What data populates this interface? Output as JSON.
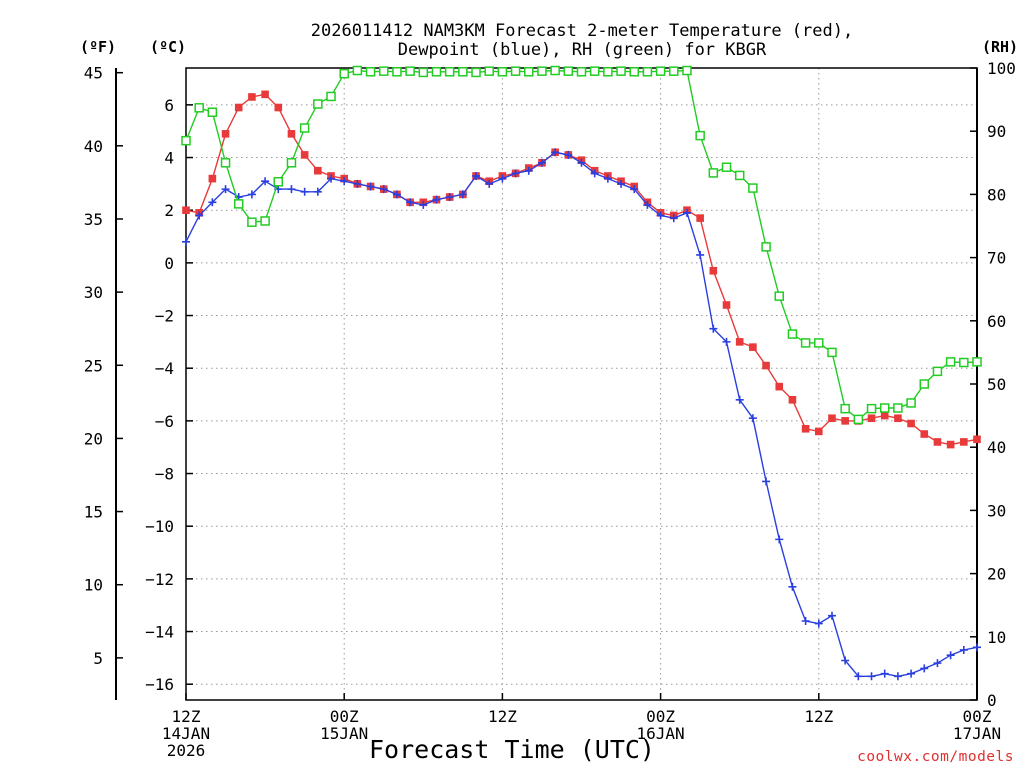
{
  "chart_data": {
    "type": "line",
    "title_lines": [
      "2026011412 NAM3KM Forecast 2-meter Temperature (red),",
      "Dewpoint (blue), RH (green) for KBGR"
    ],
    "xlabel": "Forecast Time (UTC)",
    "credit": "coolwx.com/models",
    "axis_units": {
      "fahrenheit": "(ºF)",
      "celsius": "(ºC)",
      "rh": "(RH)"
    },
    "x_axis": {
      "range_hours": [
        0,
        60
      ],
      "ticks": [
        {
          "hour": 0,
          "lines": [
            "12Z",
            "14JAN",
            "2026"
          ]
        },
        {
          "hour": 12,
          "lines": [
            "00Z",
            "15JAN"
          ]
        },
        {
          "hour": 24,
          "lines": [
            "12Z"
          ]
        },
        {
          "hour": 36,
          "lines": [
            "00Z",
            "16JAN"
          ]
        },
        {
          "hour": 48,
          "lines": [
            "12Z"
          ]
        },
        {
          "hour": 60,
          "lines": [
            "00Z",
            "17JAN"
          ]
        }
      ]
    },
    "y_left_celsius": {
      "range": [
        -16.6,
        7.4
      ],
      "ticks": [
        6,
        4,
        2,
        0,
        -2,
        -4,
        -6,
        -8,
        -10,
        -12,
        -14,
        -16
      ],
      "tick_labels": [
        "6",
        "4",
        "2",
        "0",
        "−2",
        "−4",
        "−6",
        "−8",
        "−10",
        "−12",
        "−14",
        "−16"
      ]
    },
    "y_left_fahrenheit": {
      "ticks": [
        45,
        40,
        35,
        30,
        25,
        20,
        15,
        10,
        5
      ],
      "tick_labels": [
        "45",
        "40",
        "35",
        "30",
        "25",
        "20",
        "15",
        "10",
        "5"
      ]
    },
    "y_right_rh": {
      "range": [
        0,
        100
      ],
      "ticks": [
        100,
        90,
        80,
        70,
        60,
        50,
        40,
        30,
        20,
        10,
        0
      ],
      "tick_labels": [
        "100",
        "90",
        "80",
        "70",
        "60",
        "50",
        "40",
        "30",
        "20",
        "10",
        "0"
      ]
    },
    "series": [
      {
        "name": "Temperature",
        "units": "C",
        "color": "#e83a3a",
        "marker": "filled-square",
        "x": [
          0,
          1,
          2,
          3,
          4,
          5,
          6,
          7,
          8,
          9,
          10,
          11,
          12,
          13,
          14,
          15,
          16,
          17,
          18,
          19,
          20,
          21,
          22,
          23,
          24,
          25,
          26,
          27,
          28,
          29,
          30,
          31,
          32,
          33,
          34,
          35,
          36,
          37,
          38,
          39,
          40,
          41,
          42,
          43,
          44,
          45,
          46,
          47,
          48,
          49,
          50,
          51,
          52,
          53,
          54,
          55,
          56,
          57,
          58,
          59,
          60
        ],
        "values": [
          2.0,
          1.9,
          3.2,
          4.9,
          5.9,
          6.3,
          6.4,
          5.9,
          4.9,
          4.1,
          3.5,
          3.3,
          3.2,
          3.0,
          2.9,
          2.8,
          2.6,
          2.3,
          2.3,
          2.4,
          2.5,
          2.6,
          3.3,
          3.1,
          3.3,
          3.4,
          3.6,
          3.8,
          4.2,
          4.1,
          3.9,
          3.5,
          3.3,
          3.1,
          2.9,
          2.3,
          1.9,
          1.8,
          2.0,
          1.7,
          -0.3,
          -1.6,
          -3.0,
          -3.2,
          -3.9,
          -4.7,
          -5.2,
          -6.3,
          -6.4,
          -5.9,
          -6.0,
          -6.0,
          -5.9,
          -5.8,
          -5.9,
          -6.1,
          -6.5,
          -6.8,
          -6.9,
          -6.8,
          -6.7
        ]
      },
      {
        "name": "Dewpoint",
        "units": "C",
        "color": "#2a3fe0",
        "marker": "plus",
        "x": [
          0,
          1,
          2,
          3,
          4,
          5,
          6,
          7,
          8,
          9,
          10,
          11,
          12,
          13,
          14,
          15,
          16,
          17,
          18,
          19,
          20,
          21,
          22,
          23,
          24,
          25,
          26,
          27,
          28,
          29,
          30,
          31,
          32,
          33,
          34,
          35,
          36,
          37,
          38,
          39,
          40,
          41,
          42,
          43,
          44,
          45,
          46,
          47,
          48,
          49,
          50,
          51,
          52,
          53,
          54,
          55,
          56,
          57,
          58,
          59,
          60
        ],
        "values": [
          0.8,
          1.8,
          2.3,
          2.8,
          2.5,
          2.6,
          3.1,
          2.8,
          2.8,
          2.7,
          2.7,
          3.2,
          3.1,
          3.0,
          2.9,
          2.8,
          2.6,
          2.3,
          2.2,
          2.4,
          2.5,
          2.6,
          3.3,
          3.0,
          3.2,
          3.4,
          3.5,
          3.8,
          4.2,
          4.1,
          3.8,
          3.4,
          3.2,
          3.0,
          2.8,
          2.2,
          1.8,
          1.7,
          1.9,
          0.3,
          -2.5,
          -3.0,
          -5.2,
          -5.9,
          -8.3,
          -10.5,
          -12.3,
          -13.6,
          -13.7,
          -13.4,
          -15.1,
          -15.7,
          -15.7,
          -15.6,
          -15.7,
          -15.6,
          -15.4,
          -15.2,
          -14.9,
          -14.7,
          -14.6
        ]
      },
      {
        "name": "RH",
        "units": "%",
        "color": "#22cc22",
        "marker": "hollow-square",
        "x": [
          0,
          1,
          2,
          3,
          4,
          5,
          6,
          7,
          8,
          9,
          10,
          11,
          12,
          13,
          14,
          15,
          16,
          17,
          18,
          19,
          20,
          21,
          22,
          23,
          24,
          25,
          26,
          27,
          28,
          29,
          30,
          31,
          32,
          33,
          34,
          35,
          36,
          37,
          38,
          39,
          40,
          41,
          42,
          43,
          44,
          45,
          46,
          47,
          48,
          49,
          50,
          51,
          52,
          53,
          54,
          55,
          56,
          57,
          58,
          59,
          60
        ],
        "values": [
          88.5,
          93.7,
          93.0,
          85.0,
          78.5,
          75.6,
          75.8,
          82.0,
          85.0,
          90.5,
          94.3,
          95.5,
          99.1,
          99.6,
          99.4,
          99.5,
          99.4,
          99.5,
          99.3,
          99.4,
          99.4,
          99.4,
          99.3,
          99.5,
          99.4,
          99.5,
          99.4,
          99.5,
          99.6,
          99.5,
          99.4,
          99.5,
          99.4,
          99.5,
          99.4,
          99.4,
          99.5,
          99.5,
          99.6,
          89.3,
          83.4,
          84.3,
          83.0,
          81.0,
          71.7,
          63.9,
          57.9,
          56.5,
          56.5,
          55.0,
          46.1,
          44.4,
          46.1,
          46.2,
          46.2,
          47.0,
          50.0,
          52.0,
          53.5,
          53.4,
          53.5
        ]
      }
    ]
  }
}
